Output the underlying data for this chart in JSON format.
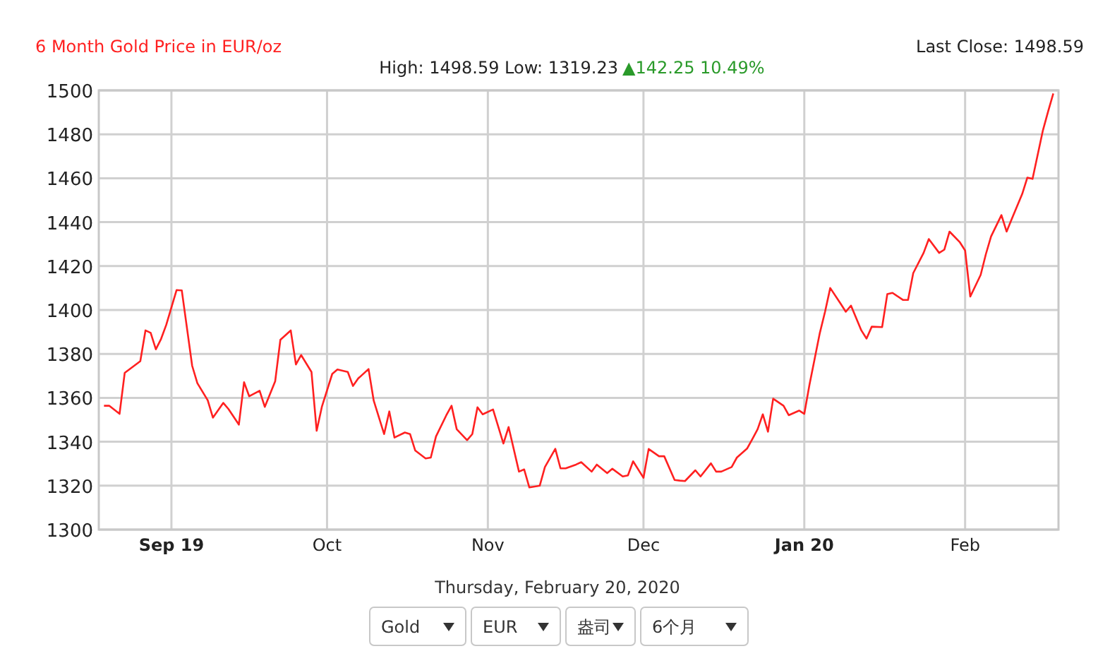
{
  "chart_data": {
    "type": "line",
    "title": "6 Month Gold Price in EUR/oz",
    "subtitle": "High: 1498.59 Low: 1319.23",
    "annotations": [
      "Last Close: 1498.59",
      "▲142.25 10.49%",
      "Thursday, February 20, 2020",
      "Gold",
      "EUR",
      "盎司",
      "6个月"
    ],
    "x": [
      "2019-08-19",
      "2019-08-20",
      "2019-08-22",
      "2019-08-23",
      "2019-08-26",
      "2019-08-27",
      "2019-08-28",
      "2019-08-29",
      "2019-08-30",
      "2019-08-31",
      "2019-09-02",
      "2019-09-03",
      "2019-09-05",
      "2019-09-06",
      "2019-09-08",
      "2019-09-09",
      "2019-09-11",
      "2019-09-12",
      "2019-09-14",
      "2019-09-15",
      "2019-09-16",
      "2019-09-18",
      "2019-09-19",
      "2019-09-21",
      "2019-09-22",
      "2019-09-24",
      "2019-09-25",
      "2019-09-26",
      "2019-09-28",
      "2019-09-29",
      "2019-09-30",
      "2019-10-02",
      "2019-10-03",
      "2019-10-05",
      "2019-10-06",
      "2019-10-07",
      "2019-10-09",
      "2019-10-10",
      "2019-10-12",
      "2019-10-13",
      "2019-10-14",
      "2019-10-16",
      "2019-10-17",
      "2019-10-18",
      "2019-10-20",
      "2019-10-21",
      "2019-10-22",
      "2019-10-24",
      "2019-10-25",
      "2019-10-26",
      "2019-10-28",
      "2019-10-29",
      "2019-10-30",
      "2019-10-31",
      "2019-11-02",
      "2019-11-04",
      "2019-11-05",
      "2019-11-07",
      "2019-11-08",
      "2019-11-09",
      "2019-11-11",
      "2019-11-12",
      "2019-11-14",
      "2019-11-15",
      "2019-11-16",
      "2019-11-18",
      "2019-11-19",
      "2019-11-21",
      "2019-11-22",
      "2019-11-24",
      "2019-11-25",
      "2019-11-27",
      "2019-11-28",
      "2019-11-29",
      "2019-12-01",
      "2019-12-02",
      "2019-12-04",
      "2019-12-05",
      "2019-12-07",
      "2019-12-08",
      "2019-12-09",
      "2019-12-11",
      "2019-12-12",
      "2019-12-14",
      "2019-12-15",
      "2019-12-16",
      "2019-12-18",
      "2019-12-19",
      "2019-12-21",
      "2019-12-22",
      "2019-12-23",
      "2019-12-24",
      "2019-12-25",
      "2019-12-26",
      "2019-12-28",
      "2019-12-29",
      "2019-12-31",
      "2020-01-01",
      "2020-01-02",
      "2020-01-04",
      "2020-01-05",
      "2020-01-06",
      "2020-01-08",
      "2020-01-09",
      "2020-01-10",
      "2020-01-12",
      "2020-01-13",
      "2020-01-14",
      "2020-01-16",
      "2020-01-17",
      "2020-01-18",
      "2020-01-20",
      "2020-01-21",
      "2020-01-22",
      "2020-01-24",
      "2020-01-25",
      "2020-01-27",
      "2020-01-28",
      "2020-01-29",
      "2020-01-31",
      "2020-02-01",
      "2020-02-02",
      "2020-02-04",
      "2020-02-05",
      "2020-02-06",
      "2020-02-08",
      "2020-02-09",
      "2020-02-10",
      "2020-02-12",
      "2020-02-13",
      "2020-02-14",
      "2020-02-16",
      "2020-02-17",
      "2020-02-18"
    ],
    "series": [
      {
        "color": "#ff2020",
        "values": [
          1356.4,
          1356.4,
          1352.7,
          1371.4,
          1376.7,
          1390.7,
          1389.6,
          1382.1,
          1386.8,
          1393.2,
          1409.1,
          1408.9,
          1374.6,
          1366.7,
          1358.9,
          1351.0,
          1357.7,
          1354.9,
          1347.8,
          1367.1,
          1360.7,
          1363.2,
          1355.9,
          1367.5,
          1386.4,
          1390.7,
          1375.2,
          1379.5,
          1371.8,
          1345.0,
          1355.9,
          1370.9,
          1372.9,
          1371.8,
          1365.4,
          1368.8,
          1373.1,
          1358.7,
          1343.5,
          1353.8,
          1341.9,
          1344.2,
          1343.5,
          1336.0,
          1332.4,
          1332.8,
          1342.4,
          1352.1,
          1356.4,
          1345.7,
          1340.7,
          1343.5,
          1355.7,
          1352.5,
          1354.7,
          1339.2,
          1346.7,
          1326.4,
          1327.4,
          1319.2,
          1320.0,
          1328.5,
          1336.8,
          1327.9,
          1327.9,
          1329.6,
          1330.7,
          1326.4,
          1329.6,
          1325.7,
          1327.7,
          1324.2,
          1324.7,
          1331.1,
          1323.6,
          1336.7,
          1333.4,
          1333.4,
          1322.6,
          1322.3,
          1322.1,
          1327.0,
          1324.2,
          1330.2,
          1326.4,
          1326.4,
          1328.5,
          1332.8,
          1337.0,
          1341.3,
          1345.7,
          1352.5,
          1344.6,
          1359.6,
          1356.4,
          1352.1,
          1354.2,
          1352.7,
          1366.0,
          1389.6,
          1399.2,
          1410.0,
          1402.9,
          1399.2,
          1402.0,
          1390.7,
          1387.0,
          1392.4,
          1392.2,
          1407.2,
          1407.8,
          1404.6,
          1404.6,
          1416.8,
          1426.0,
          1432.3,
          1426.0,
          1427.5,
          1435.7,
          1430.8,
          1427.1,
          1406.1,
          1416.0,
          1425.4,
          1433.5,
          1443.2,
          1435.7,
          1441.5,
          1452.8,
          1460.3,
          1459.7,
          1481.8,
          1490.4,
          1498.6
        ]
      }
    ],
    "xlim": [
      "2019-08-18",
      "2020-02-19"
    ],
    "xticks": [
      {
        "value": "2019-09-01",
        "label": "Sep 19"
      },
      {
        "value": "2019-10-01",
        "label": "Oct"
      },
      {
        "value": "2019-11-01",
        "label": "Nov"
      },
      {
        "value": "2019-12-01",
        "label": "Dec"
      },
      {
        "value": "2020-01-01",
        "label": "Jan 20"
      },
      {
        "value": "2020-02-01",
        "label": "Feb"
      }
    ],
    "ylim": [
      1300,
      1500
    ],
    "yticks": [
      1300,
      1320,
      1340,
      1360,
      1380,
      1400,
      1420,
      1440,
      1460,
      1480,
      1500
    ],
    "grid": true
  }
}
